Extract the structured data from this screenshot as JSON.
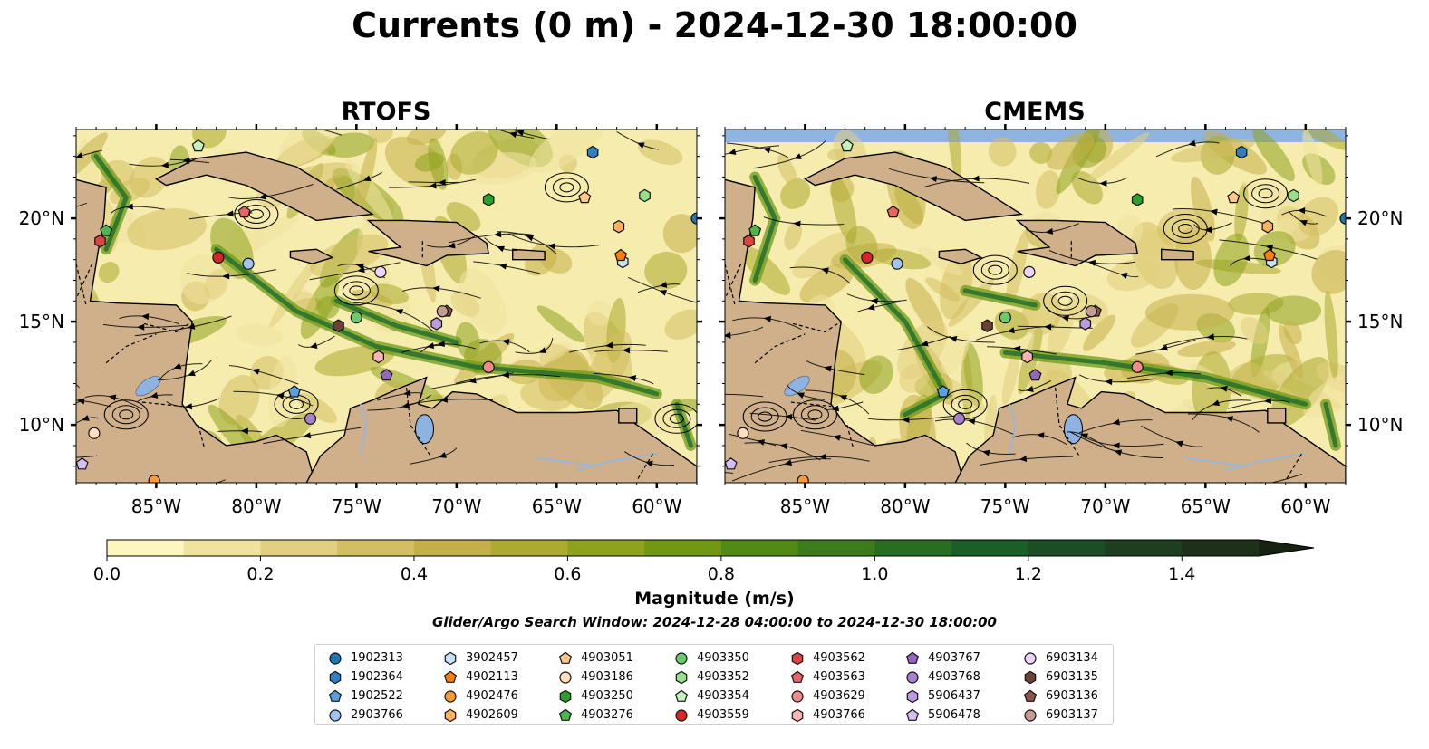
{
  "title": "Currents (0 m) - 2024-12-30 18:00:00",
  "panels": [
    {
      "title": "RTOFS"
    },
    {
      "title": "CMEMS"
    }
  ],
  "axes": {
    "lon_ticks": [
      "85°W",
      "80°W",
      "75°W",
      "70°W",
      "65°W",
      "60°W"
    ],
    "lat_ticks": [
      "20°N",
      "15°N",
      "10°N"
    ]
  },
  "colorbar": {
    "label": "Magnitude (m/s)",
    "ticks": [
      "0.0",
      "0.2",
      "0.4",
      "0.6",
      "0.8",
      "1.0",
      "1.2",
      "1.4"
    ],
    "colors": [
      "#fdf7bf",
      "#f0e3a0",
      "#e2cf80",
      "#d3bf63",
      "#c4b04a",
      "#acaa30",
      "#8ea21d",
      "#709812",
      "#528a16",
      "#3c7c1d",
      "#276e22",
      "#1a5f27",
      "#1b4e24",
      "#1d3f1f",
      "#1d3119",
      "#162313"
    ]
  },
  "search_window": "Glider/Argo Search Window: 2024-12-28 04:00:00 to 2024-12-30 18:00:00",
  "legend": [
    {
      "id": "1902313",
      "marker": "circle",
      "color": "#1f77b4"
    },
    {
      "id": "1902364",
      "marker": "hexagon",
      "color": "#2f7fc1"
    },
    {
      "id": "1902522",
      "marker": "pentagon",
      "color": "#5aa0e0"
    },
    {
      "id": "2903766",
      "marker": "circle",
      "color": "#9fc5ee"
    },
    {
      "id": "3902457",
      "marker": "hexagon",
      "color": "#c6e2f7"
    },
    {
      "id": "4902113",
      "marker": "pentagon",
      "color": "#ff7f0e"
    },
    {
      "id": "4902476",
      "marker": "circle",
      "color": "#ff9a33"
    },
    {
      "id": "4902609",
      "marker": "hexagon",
      "color": "#ffb061"
    },
    {
      "id": "4903051",
      "marker": "pentagon",
      "color": "#ffc68f"
    },
    {
      "id": "4903186",
      "marker": "circle",
      "color": "#ffdfbf"
    },
    {
      "id": "4903250",
      "marker": "hexagon",
      "color": "#2ca02c"
    },
    {
      "id": "4903276",
      "marker": "pentagon",
      "color": "#4cb84c"
    },
    {
      "id": "4903350",
      "marker": "circle",
      "color": "#6cc96c"
    },
    {
      "id": "4903352",
      "marker": "hexagon",
      "color": "#98df8a"
    },
    {
      "id": "4903354",
      "marker": "pentagon",
      "color": "#c6f2bf"
    },
    {
      "id": "4903559",
      "marker": "circle",
      "color": "#d62728"
    },
    {
      "id": "4903562",
      "marker": "hexagon",
      "color": "#dc4446"
    },
    {
      "id": "4903563",
      "marker": "pentagon",
      "color": "#e86467"
    },
    {
      "id": "4903629",
      "marker": "circle",
      "color": "#f08a8c"
    },
    {
      "id": "4903766",
      "marker": "hexagon",
      "color": "#fbb4b6"
    },
    {
      "id": "4903767",
      "marker": "pentagon",
      "color": "#9467bd"
    },
    {
      "id": "4903768",
      "marker": "circle",
      "color": "#a680cc"
    },
    {
      "id": "5906437",
      "marker": "hexagon",
      "color": "#bb9be0"
    },
    {
      "id": "5906478",
      "marker": "pentagon",
      "color": "#d5bff2"
    },
    {
      "id": "6903134",
      "marker": "circle",
      "color": "#ecd5f7"
    },
    {
      "id": "6903135",
      "marker": "hexagon",
      "color": "#6b4336"
    },
    {
      "id": "6903136",
      "marker": "pentagon",
      "color": "#8c564b"
    },
    {
      "id": "6903137",
      "marker": "circle",
      "color": "#c49c94"
    }
  ],
  "floats": [
    {
      "id": "1902313",
      "lon": -58.0,
      "lat": 20.0
    },
    {
      "id": "1902364",
      "lon": -63.2,
      "lat": 23.2
    },
    {
      "id": "1902522",
      "lon": -78.1,
      "lat": 11.6
    },
    {
      "id": "2903766",
      "lon": -80.4,
      "lat": 17.8
    },
    {
      "id": "3902457",
      "lon": -61.7,
      "lat": 17.9
    },
    {
      "id": "4902113",
      "lon": -61.8,
      "lat": 18.2
    },
    {
      "id": "4902476",
      "lon": -85.1,
      "lat": 7.3
    },
    {
      "id": "4902609",
      "lon": -61.9,
      "lat": 19.6
    },
    {
      "id": "4903051",
      "lon": -63.6,
      "lat": 21.0
    },
    {
      "id": "4903186",
      "lon": -88.1,
      "lat": 9.6
    },
    {
      "id": "4903250",
      "lon": -68.4,
      "lat": 20.9
    },
    {
      "id": "4903276",
      "lon": -87.5,
      "lat": 19.4
    },
    {
      "id": "4903350",
      "lon": -75.0,
      "lat": 15.2
    },
    {
      "id": "4903352",
      "lon": -60.6,
      "lat": 21.1
    },
    {
      "id": "4903354",
      "lon": -82.9,
      "lat": 23.5
    },
    {
      "id": "4903559",
      "lon": -81.9,
      "lat": 18.1
    },
    {
      "id": "4903562",
      "lon": -87.8,
      "lat": 18.9
    },
    {
      "id": "4903563",
      "lon": -80.6,
      "lat": 20.3
    },
    {
      "id": "4903629",
      "lon": -68.4,
      "lat": 12.8
    },
    {
      "id": "4903766",
      "lon": -73.9,
      "lat": 13.3
    },
    {
      "id": "4903767",
      "lon": -73.5,
      "lat": 12.4
    },
    {
      "id": "4903768",
      "lon": -77.3,
      "lat": 10.3
    },
    {
      "id": "5906437",
      "lon": -71.0,
      "lat": 14.9
    },
    {
      "id": "5906478",
      "lon": -88.7,
      "lat": 8.1
    },
    {
      "id": "6903134",
      "lon": -73.8,
      "lat": 17.4
    },
    {
      "id": "6903135",
      "lon": -75.9,
      "lat": 14.8
    },
    {
      "id": "6903136",
      "lon": -70.5,
      "lat": 15.5
    },
    {
      "id": "6903137",
      "lon": -70.7,
      "lat": 15.5
    }
  ]
}
